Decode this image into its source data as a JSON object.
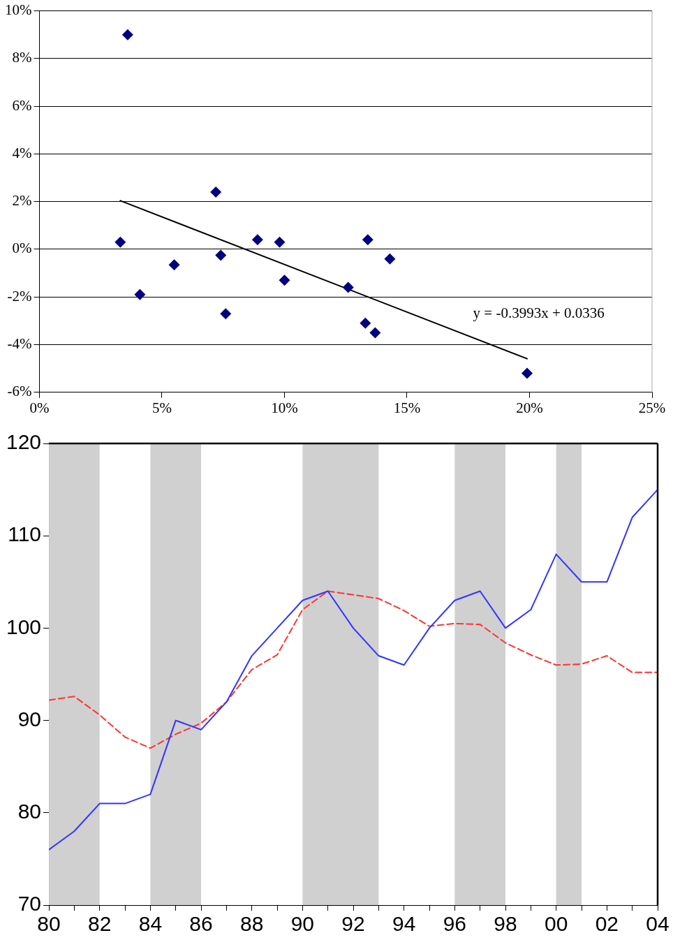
{
  "chart_data": [
    {
      "type": "scatter",
      "xlim": [
        0,
        25
      ],
      "ylim": [
        -6,
        10
      ],
      "xticks": [
        {
          "value": 0,
          "label": "0%"
        },
        {
          "value": 5,
          "label": "5%"
        },
        {
          "value": 10,
          "label": "10%"
        },
        {
          "value": 15,
          "label": "15%"
        },
        {
          "value": 20,
          "label": "20%"
        },
        {
          "value": 25,
          "label": "25%"
        }
      ],
      "yticks": [
        {
          "value": -6,
          "label": "-6%"
        },
        {
          "value": -4,
          "label": "-4%"
        },
        {
          "value": -2,
          "label": "-2%"
        },
        {
          "value": 0,
          "label": "0%"
        },
        {
          "value": 2,
          "label": "2%"
        },
        {
          "value": 4,
          "label": "4%"
        },
        {
          "value": 6,
          "label": "6%"
        },
        {
          "value": 8,
          "label": "8%"
        },
        {
          "value": 10,
          "label": "10%"
        }
      ],
      "grid": "y",
      "marker": "diamond",
      "legend": false,
      "series": [
        {
          "type": "scatter",
          "color": "#000080",
          "x": [
            3.6,
            3.3,
            4.1,
            5.5,
            7.2,
            7.4,
            7.6,
            8.9,
            9.8,
            10.0,
            12.6,
            13.4,
            13.3,
            13.7,
            14.3,
            19.9
          ],
          "values": [
            9.0,
            0.3,
            -1.9,
            -0.65,
            2.4,
            -0.25,
            -2.7,
            0.4,
            0.3,
            -1.3,
            -1.6,
            0.4,
            -3.1,
            -3.5,
            -0.4,
            -5.2
          ]
        },
        {
          "type": "line",
          "color": "#000000",
          "marker": "none",
          "line_style": "solid",
          "x": [
            3.3,
            19.9
          ],
          "values": [
            2.04,
            -4.59
          ]
        }
      ],
      "annotations": [
        "y = -0.3993x + 0.0336"
      ]
    },
    {
      "type": "line",
      "xlim": [
        1980,
        2004
      ],
      "ylim": [
        70,
        120
      ],
      "xticks": [
        {
          "value": 1980,
          "label": "80"
        },
        {
          "value": 1981,
          "label": null
        },
        {
          "value": 1982,
          "label": "82"
        },
        {
          "value": 1983,
          "label": null
        },
        {
          "value": 1984,
          "label": "84"
        },
        {
          "value": 1985,
          "label": null
        },
        {
          "value": 1986,
          "label": "86"
        },
        {
          "value": 1987,
          "label": null
        },
        {
          "value": 1988,
          "label": "88"
        },
        {
          "value": 1989,
          "label": null
        },
        {
          "value": 1990,
          "label": "90"
        },
        {
          "value": 1991,
          "label": null
        },
        {
          "value": 1992,
          "label": "92"
        },
        {
          "value": 1993,
          "label": null
        },
        {
          "value": 1994,
          "label": "94"
        },
        {
          "value": 1995,
          "label": null
        },
        {
          "value": 1996,
          "label": "96"
        },
        {
          "value": 1997,
          "label": null
        },
        {
          "value": 1998,
          "label": "98"
        },
        {
          "value": 1999,
          "label": null
        },
        {
          "value": 2000,
          "label": "00"
        },
        {
          "value": 2001,
          "label": null
        },
        {
          "value": 2002,
          "label": "02"
        },
        {
          "value": 2003,
          "label": null
        },
        {
          "value": 2004,
          "label": "04"
        }
      ],
      "yticks": [
        70,
        80,
        90,
        100,
        110,
        120
      ],
      "grid": false,
      "marker": "none",
      "legend": false,
      "x": [
        1980,
        1981,
        1982,
        1983,
        1984,
        1985,
        1986,
        1987,
        1988,
        1989,
        1990,
        1991,
        1992,
        1993,
        1994,
        1995,
        1996,
        1997,
        1998,
        1999,
        2000,
        2001,
        2002,
        2003,
        2004
      ],
      "series": [
        {
          "color": "#3333ff",
          "line_style": "solid",
          "values": [
            76,
            78,
            81,
            81,
            82,
            90,
            89,
            92,
            97,
            100,
            103,
            104,
            100,
            97,
            96,
            100,
            103,
            104,
            100,
            102,
            108,
            105,
            105,
            112,
            115
          ]
        },
        {
          "color": "#ff3333",
          "line_style": "dashed",
          "values": [
            92.2,
            92.6,
            90.6,
            88.2,
            87,
            88.5,
            89.7,
            92,
            95.5,
            97.1,
            102,
            104,
            103.6,
            103.2,
            101.9,
            100.2,
            100.5,
            100.4,
            98.4,
            97.1,
            96,
            96.1,
            97,
            95.2,
            95.2
          ]
        }
      ],
      "bands": [
        {
          "axis": "x",
          "from": 1980,
          "to": 1982,
          "color": "#d0d0d0"
        },
        {
          "axis": "x",
          "from": 1984,
          "to": 1986,
          "color": "#d0d0d0"
        },
        {
          "axis": "x",
          "from": 1990,
          "to": 1993,
          "color": "#d0d0d0"
        },
        {
          "axis": "x",
          "from": 1996,
          "to": 1998,
          "color": "#d0d0d0"
        },
        {
          "axis": "x",
          "from": 2000,
          "to": 2001,
          "color": "#d0d0d0"
        }
      ]
    }
  ]
}
